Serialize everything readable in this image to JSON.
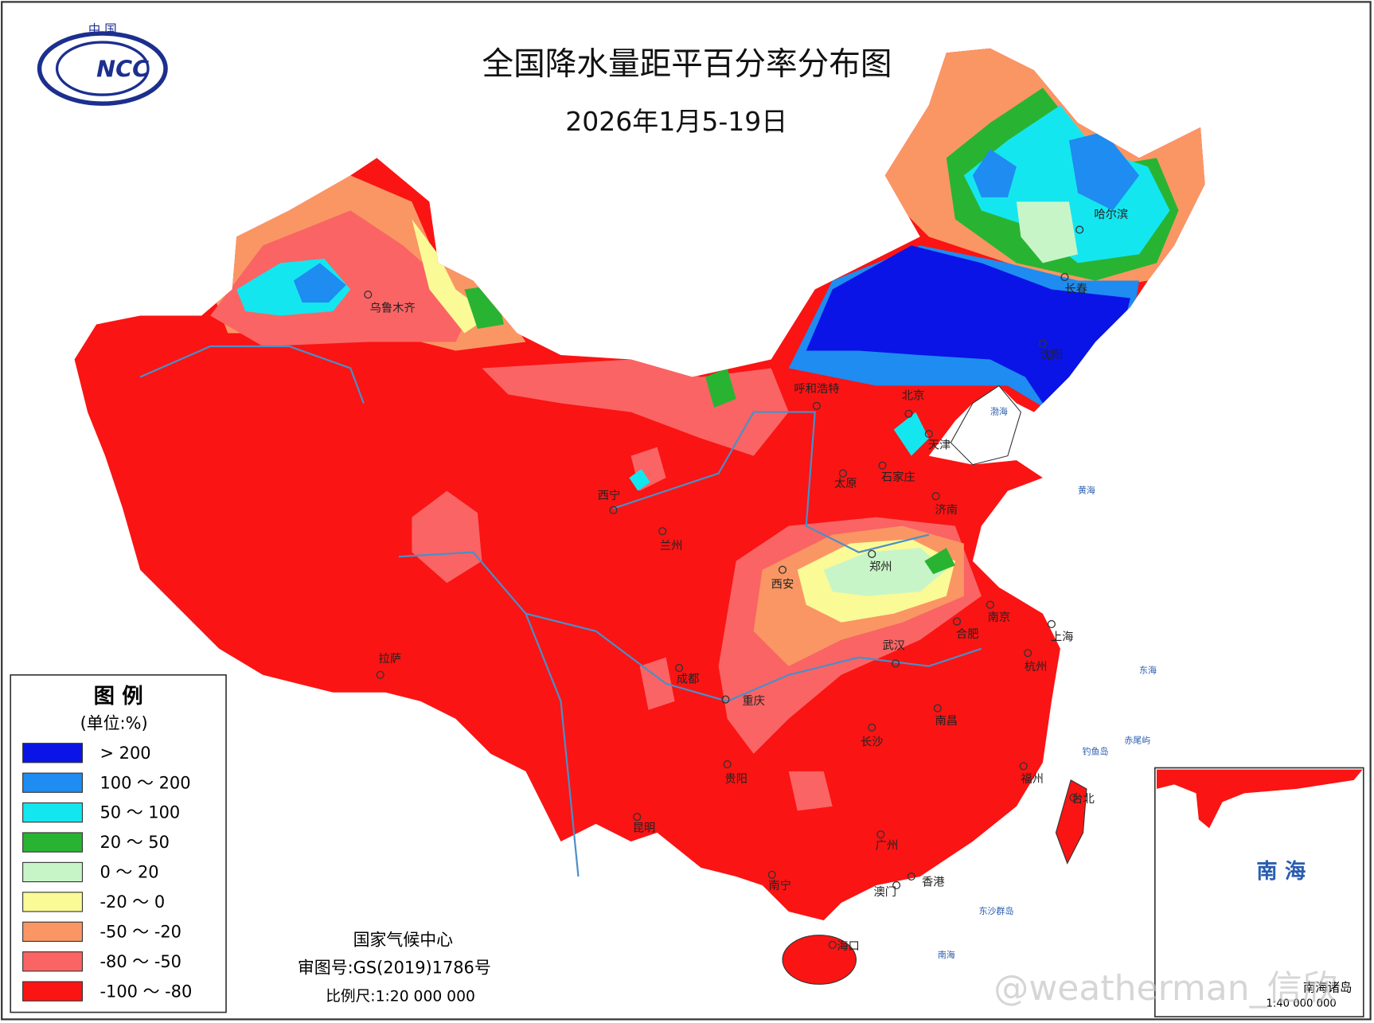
{
  "logo": {
    "country": "中 国",
    "name": "NCC"
  },
  "header": {
    "title": "全国降水量距平百分率分布图",
    "subtitle": "2026年1月5-19日"
  },
  "legend": {
    "title": "图 例",
    "unit": "(单位:%)",
    "items": [
      {
        "label": "> 200",
        "color": "#0a14e6"
      },
      {
        "label": "100 ～ 200",
        "color": "#1e8cf0"
      },
      {
        "label": "50 ～ 100",
        "color": "#14e6f0"
      },
      {
        "label": "20 ～ 50",
        "color": "#28b432"
      },
      {
        "label": "0 ～ 20",
        "color": "#c8f5c8"
      },
      {
        "label": "-20 ～ 0",
        "color": "#fafa96"
      },
      {
        "label": "-50 ～ -20",
        "color": "#fa9664"
      },
      {
        "label": "-80 ～ -50",
        "color": "#fa6464"
      },
      {
        "label": "-100 ～ -80",
        "color": "#fa1414"
      }
    ]
  },
  "cities": [
    "乌鲁木齐",
    "哈尔滨",
    "长春",
    "沈阳",
    "呼和浩特",
    "北京",
    "天津",
    "石家庄",
    "太原",
    "济南",
    "西宁",
    "兰州",
    "郑州",
    "西安",
    "南京",
    "合肥",
    "上海",
    "武汉",
    "杭州",
    "拉萨",
    "成都",
    "重庆",
    "南昌",
    "长沙",
    "贵阳",
    "福州",
    "台北",
    "昆明",
    "广州",
    "南宁",
    "香港",
    "澳门",
    "海口"
  ],
  "sea_labels": [
    "渤海",
    "黄海",
    "东海",
    "南海",
    "钓鱼岛",
    "赤尾屿",
    "东沙群岛"
  ],
  "inset": {
    "title": "南 海",
    "caption": "南海诸岛",
    "scale": "1:40 000 000"
  },
  "footer": {
    "agency": "国家气候中心",
    "approval": "审图号:GS(2019)1786号",
    "scale": "比例尺:1:20 000 000"
  },
  "watermark": "@weatherman_信欣"
}
